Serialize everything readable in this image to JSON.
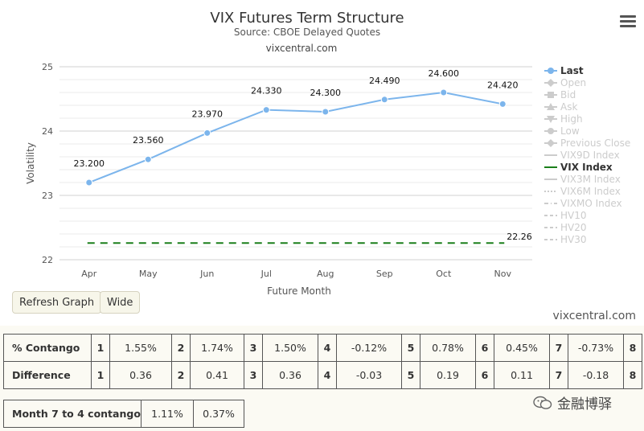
{
  "menu_icon": "hamburger-menu-icon",
  "chart_data": {
    "type": "line",
    "title": "VIX Futures Term Structure",
    "subtitle": "Source: CBOE Delayed Quotes",
    "credit_top": "vixcentral.com",
    "xlabel": "Future Month",
    "ylabel": "Volatility",
    "categories": [
      "Apr",
      "May",
      "Jun",
      "Jul",
      "Aug",
      "Sep",
      "Oct",
      "Nov"
    ],
    "yticks": [
      "22",
      "23",
      "24",
      "25"
    ],
    "ylim": [
      22,
      25
    ],
    "grid": true,
    "series": [
      {
        "name": "Last",
        "color": "#7cb5ec",
        "values": [
          23.2,
          23.56,
          23.97,
          24.33,
          24.3,
          24.49,
          24.6,
          24.42
        ],
        "labels": [
          "23.200",
          "23.560",
          "23.970",
          "24.330",
          "24.300",
          "24.490",
          "24.600",
          "24.420"
        ]
      },
      {
        "name": "VIX Index",
        "color": "#1a7f1a",
        "style": "dashed",
        "value": 22.26,
        "label": "22.26"
      }
    ],
    "legend_position": "right",
    "legend": [
      {
        "label": "Last",
        "active": true,
        "symbol": "circle-line"
      },
      {
        "label": "Open",
        "active": false,
        "symbol": "diamond-line"
      },
      {
        "label": "Bid",
        "active": false,
        "symbol": "square-line"
      },
      {
        "label": "Ask",
        "active": false,
        "symbol": "triangle-line"
      },
      {
        "label": "High",
        "active": false,
        "symbol": "triangle-down-line"
      },
      {
        "label": "Low",
        "active": false,
        "symbol": "circle-line"
      },
      {
        "label": "Previous Close",
        "active": false,
        "symbol": "diamond-line"
      },
      {
        "label": "VIX9D Index",
        "active": false,
        "symbol": "line"
      },
      {
        "label": "VIX Index",
        "active": true,
        "symbol": "line"
      },
      {
        "label": "VIX3M Index",
        "active": false,
        "symbol": "line"
      },
      {
        "label": "VIX6M Index",
        "active": false,
        "symbol": "dotted-line"
      },
      {
        "label": "VIXMO Index",
        "active": false,
        "symbol": "dash-dot-line"
      },
      {
        "label": "HV10",
        "active": false,
        "symbol": "dash-line"
      },
      {
        "label": "HV20",
        "active": false,
        "symbol": "dash-line"
      },
      {
        "label": "HV30",
        "active": false,
        "symbol": "dash-line"
      }
    ]
  },
  "buttons": {
    "refresh": "Refresh Graph",
    "wide": "Wide"
  },
  "credit_bottom": "vixcentral.com",
  "contango_table": {
    "rows": [
      {
        "label": "% Contango",
        "cells": [
          [
            "1",
            "1.55%"
          ],
          [
            "2",
            "1.74%"
          ],
          [
            "3",
            "1.50%"
          ],
          [
            "4",
            "-0.12%"
          ],
          [
            "5",
            "0.78%"
          ],
          [
            "6",
            "0.45%"
          ],
          [
            "7",
            "-0.73%"
          ],
          [
            "8",
            ""
          ]
        ]
      },
      {
        "label": "Difference",
        "cells": [
          [
            "1",
            "0.36"
          ],
          [
            "2",
            "0.41"
          ],
          [
            "3",
            "0.36"
          ],
          [
            "4",
            "-0.03"
          ],
          [
            "5",
            "0.19"
          ],
          [
            "6",
            "0.11"
          ],
          [
            "7",
            "-0.18"
          ],
          [
            "8",
            ""
          ]
        ]
      }
    ]
  },
  "month_table": {
    "label": "Month 7 to 4 contango",
    "values": [
      "1.11%",
      "0.37%"
    ]
  },
  "watermark": {
    "text": "金融博驿",
    "icon": "wechat-icon"
  }
}
